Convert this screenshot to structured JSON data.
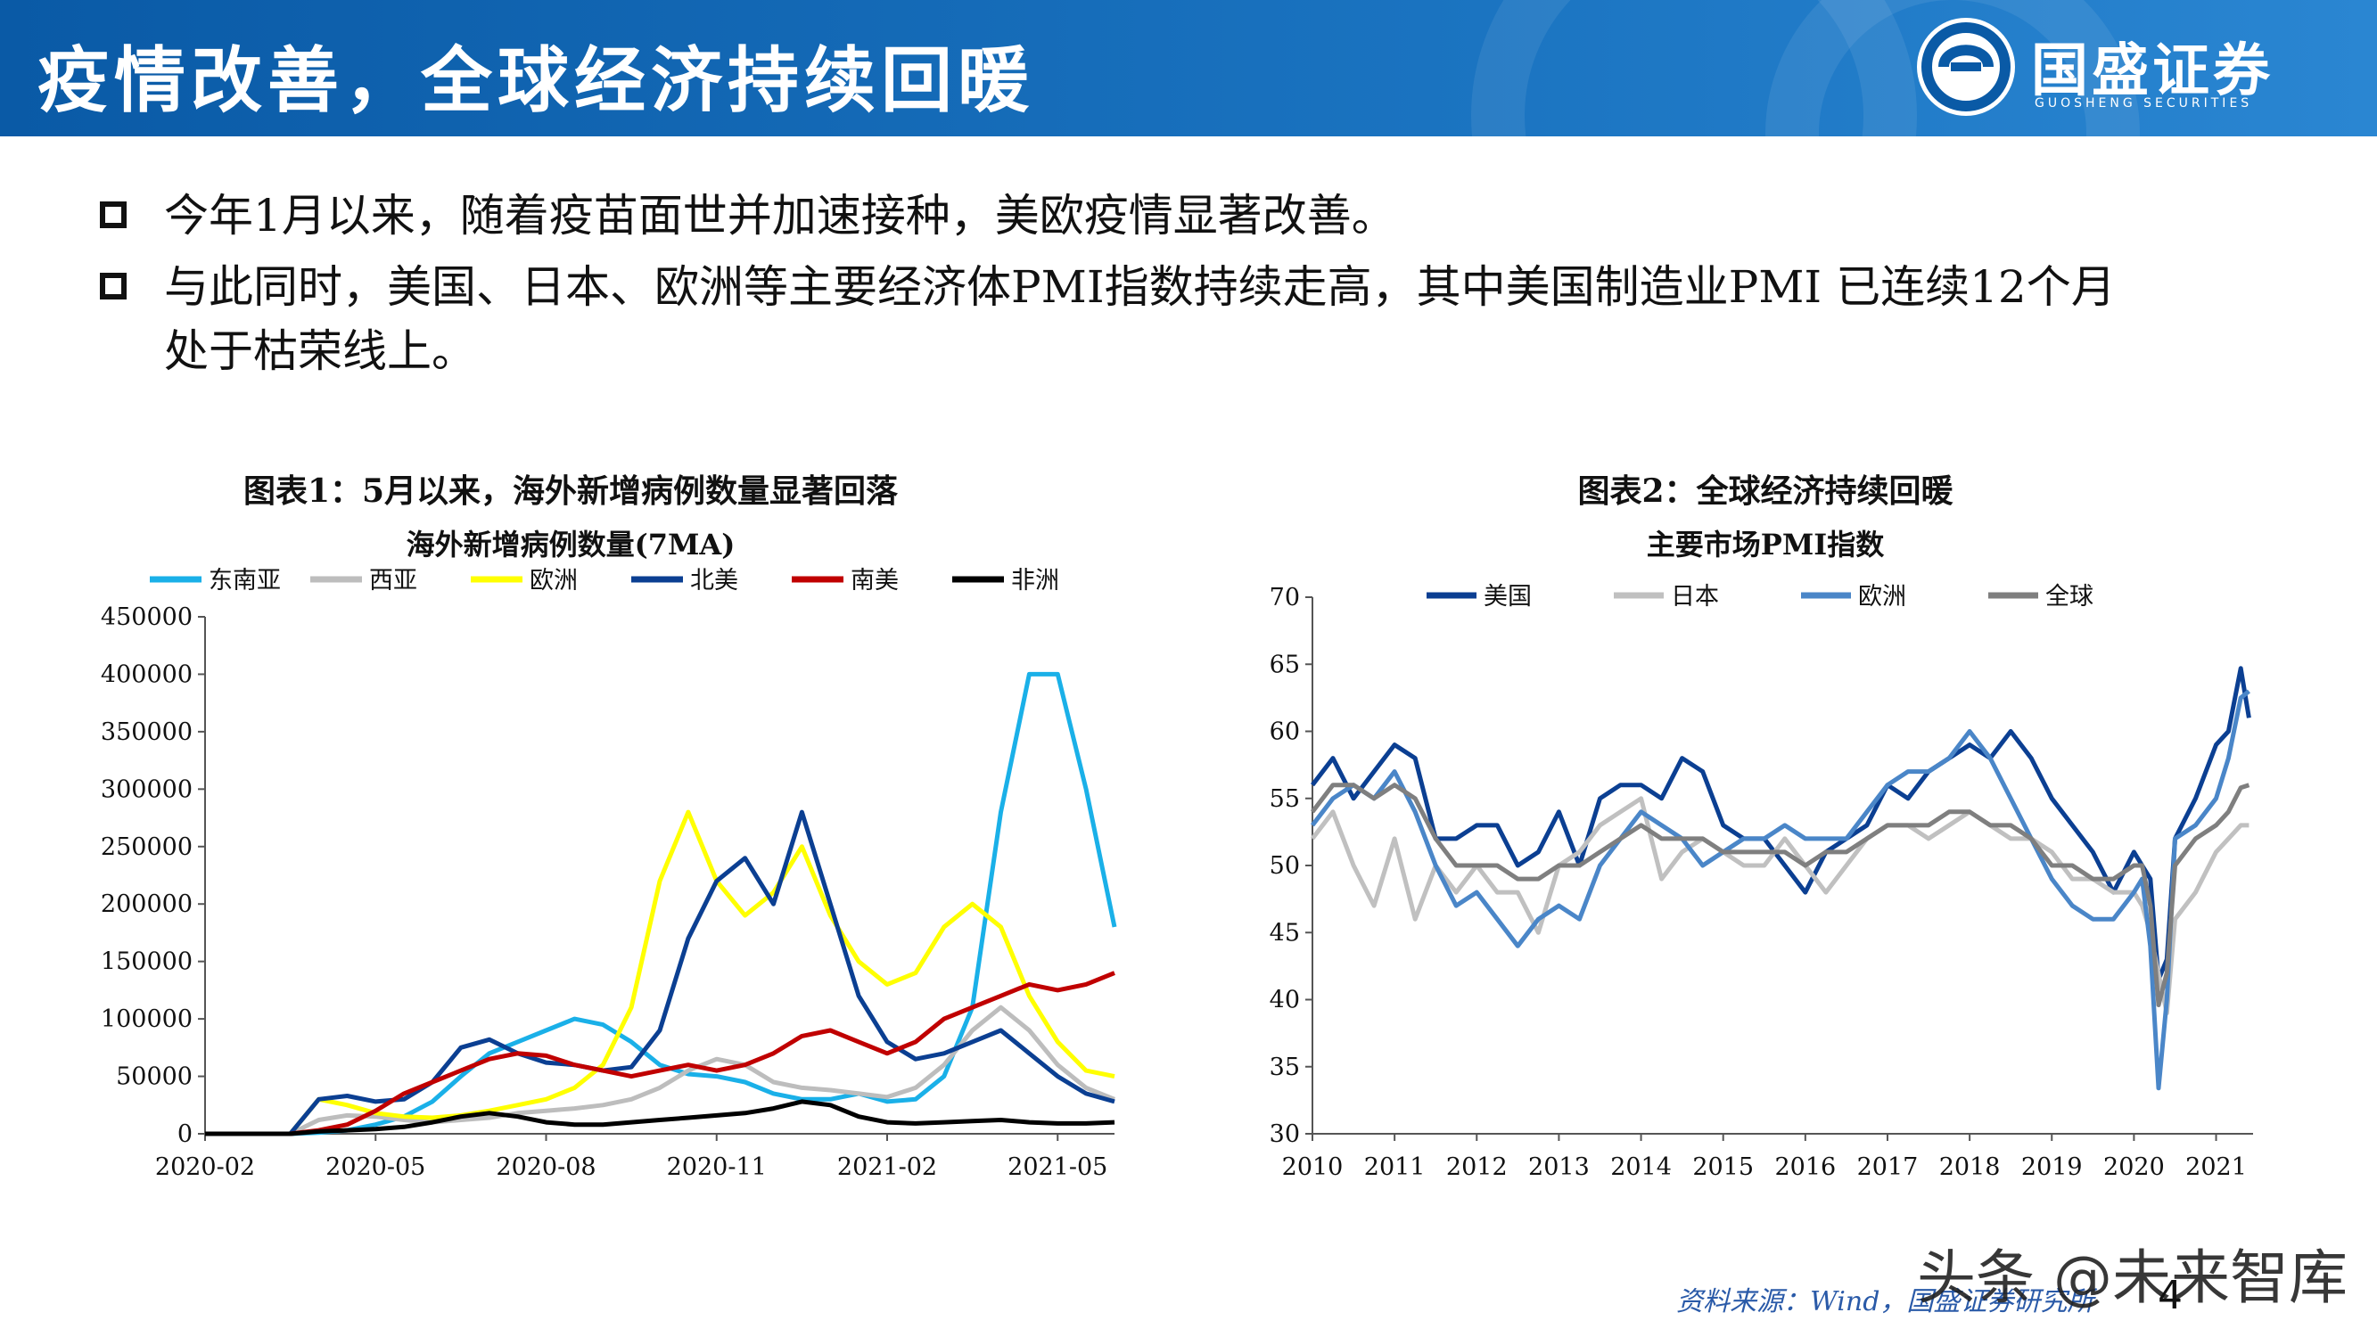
{
  "header": {
    "title": "疫情改善，全球经济持续回暖",
    "logo_name": "国盛证券",
    "logo_en": "GUOSHENG SECURITIES"
  },
  "bullets": [
    {
      "line1": "今年1月以来，随着疫苗面世并加速接种，美欧疫情显著改善。"
    },
    {
      "line1": "与此同时，美国、日本、欧洲等主要经济体PMI指数持续走高，其中美国制造业PMI 已连续12个月",
      "line2": "处于枯荣线上。"
    }
  ],
  "chart_data": [
    {
      "type": "line",
      "title": "图表1：5月以来，海外新增病例数量显著回落",
      "subtitle": "海外新增病例数量(7MA)",
      "xlabel": "",
      "ylabel": "",
      "x_ticks": [
        "2020-02",
        "2020-05",
        "2020-08",
        "2020-11",
        "2021-02",
        "2021-05"
      ],
      "x_range": [
        0,
        16
      ],
      "ylim": [
        0,
        450000
      ],
      "y_ticks": [
        0,
        50000,
        100000,
        150000,
        200000,
        250000,
        300000,
        350000,
        400000,
        450000
      ],
      "legend_position": "top",
      "x": [
        0,
        0.5,
        1,
        1.5,
        2,
        2.5,
        3,
        3.5,
        4,
        4.5,
        5,
        5.5,
        6,
        6.5,
        7,
        7.5,
        8,
        8.5,
        9,
        9.5,
        10,
        10.5,
        11,
        11.5,
        12,
        12.5,
        13,
        13.5,
        14,
        14.5,
        15,
        15.5,
        16
      ],
      "series": [
        {
          "name": "东南亚",
          "color": "#1ab0e8",
          "values": [
            0,
            0,
            0,
            0,
            1000,
            3000,
            8000,
            15000,
            28000,
            50000,
            70000,
            80000,
            90000,
            100000,
            95000,
            80000,
            60000,
            52000,
            50000,
            45000,
            35000,
            30000,
            30000,
            35000,
            28000,
            30000,
            50000,
            110000,
            280000,
            400000,
            400000,
            300000,
            180000
          ]
        },
        {
          "name": "西亚",
          "color": "#bdbdbd",
          "values": [
            0,
            0,
            0,
            0,
            12000,
            16000,
            15000,
            12000,
            10000,
            12000,
            14000,
            18000,
            20000,
            22000,
            25000,
            30000,
            40000,
            55000,
            65000,
            60000,
            45000,
            40000,
            38000,
            35000,
            32000,
            40000,
            60000,
            90000,
            110000,
            90000,
            60000,
            40000,
            30000
          ]
        },
        {
          "name": "欧洲",
          "color": "#ffff00",
          "values": [
            0,
            0,
            0,
            0,
            30000,
            25000,
            18000,
            15000,
            14000,
            16000,
            20000,
            25000,
            30000,
            40000,
            60000,
            110000,
            220000,
            280000,
            220000,
            190000,
            210000,
            250000,
            190000,
            150000,
            130000,
            140000,
            180000,
            200000,
            180000,
            120000,
            80000,
            55000,
            50000
          ]
        },
        {
          "name": "北美",
          "color": "#0b3f92",
          "values": [
            0,
            0,
            0,
            0,
            30000,
            33000,
            28000,
            30000,
            45000,
            75000,
            82000,
            70000,
            62000,
            60000,
            55000,
            58000,
            90000,
            170000,
            220000,
            240000,
            200000,
            280000,
            200000,
            120000,
            80000,
            65000,
            70000,
            80000,
            90000,
            70000,
            50000,
            35000,
            28000
          ]
        },
        {
          "name": "南美",
          "color": "#c00000",
          "values": [
            0,
            0,
            0,
            0,
            3000,
            8000,
            20000,
            35000,
            45000,
            55000,
            65000,
            70000,
            68000,
            60000,
            55000,
            50000,
            55000,
            60000,
            55000,
            60000,
            70000,
            85000,
            90000,
            80000,
            70000,
            80000,
            100000,
            110000,
            120000,
            130000,
            125000,
            130000,
            140000
          ]
        },
        {
          "name": "非洲",
          "color": "#000000",
          "values": [
            0,
            0,
            0,
            0,
            2000,
            3000,
            4000,
            6000,
            10000,
            15000,
            18000,
            15000,
            10000,
            8000,
            8000,
            10000,
            12000,
            14000,
            16000,
            18000,
            22000,
            28000,
            25000,
            15000,
            10000,
            9000,
            10000,
            11000,
            12000,
            10000,
            9000,
            9000,
            10000
          ]
        }
      ]
    },
    {
      "type": "line",
      "title": "图表2：全球经济持续回暖",
      "subtitle": "主要市场PMI指数",
      "xlabel": "",
      "ylabel": "",
      "x_ticks": [
        "2010",
        "2011",
        "2012",
        "2013",
        "2014",
        "2015",
        "2016",
        "2017",
        "2018",
        "2019",
        "2020",
        "2021"
      ],
      "x_range": [
        2010,
        2021.45
      ],
      "ylim": [
        30,
        70
      ],
      "y_ticks": [
        30,
        35,
        40,
        45,
        50,
        55,
        60,
        65,
        70
      ],
      "legend_position": "top",
      "x": [
        2010,
        2010.25,
        2010.5,
        2010.75,
        2011,
        2011.25,
        2011.5,
        2011.75,
        2012,
        2012.25,
        2012.5,
        2012.75,
        2013,
        2013.25,
        2013.5,
        2013.75,
        2014,
        2014.25,
        2014.5,
        2014.75,
        2015,
        2015.25,
        2015.5,
        2015.75,
        2016,
        2016.25,
        2016.5,
        2016.75,
        2017,
        2017.25,
        2017.5,
        2017.75,
        2018,
        2018.25,
        2018.5,
        2018.75,
        2019,
        2019.25,
        2019.5,
        2019.75,
        2020,
        2020.1,
        2020.2,
        2020.3,
        2020.4,
        2020.5,
        2020.75,
        2021,
        2021.15,
        2021.3,
        2021.4
      ],
      "series": [
        {
          "name": "美国",
          "color": "#0b3f92",
          "values": [
            56,
            58,
            55,
            57,
            59,
            58,
            52,
            52,
            53,
            53,
            50,
            51,
            54,
            50,
            55,
            56,
            56,
            55,
            58,
            57,
            53,
            52,
            52,
            50,
            48,
            51,
            52,
            53,
            56,
            55,
            57,
            58,
            59,
            58,
            60,
            58,
            55,
            53,
            51,
            48,
            51,
            50,
            49,
            41.5,
            43,
            52,
            55,
            59,
            60,
            64.7,
            61
          ]
        },
        {
          "name": "日本",
          "color": "#c0c0c0",
          "values": [
            52,
            54,
            50,
            47,
            52,
            46,
            50,
            48,
            50,
            48,
            48,
            45,
            50,
            51,
            53,
            54,
            55,
            49,
            51,
            52,
            51,
            50,
            50,
            52,
            50,
            48,
            50,
            52,
            53,
            53,
            52,
            53,
            54,
            53,
            52,
            52,
            51,
            49,
            49,
            48,
            48,
            47,
            45,
            41.9,
            39,
            46,
            48,
            51,
            52,
            53,
            53
          ]
        },
        {
          "name": "欧洲",
          "color": "#4a86c8",
          "values": [
            53,
            55,
            56,
            55,
            57,
            54,
            50,
            47,
            48,
            46,
            44,
            46,
            47,
            46,
            50,
            52,
            54,
            53,
            52,
            50,
            51,
            52,
            52,
            53,
            52,
            52,
            52,
            54,
            56,
            57,
            57,
            58,
            60,
            58,
            55,
            52,
            49,
            47,
            46,
            46,
            48,
            49,
            44,
            33.4,
            40,
            52,
            53,
            55,
            58,
            62.5,
            63
          ]
        },
        {
          "name": "全球",
          "color": "#7f7f7f",
          "values": [
            54,
            56,
            56,
            55,
            56,
            55,
            52,
            50,
            50,
            50,
            49,
            49,
            50,
            50,
            51,
            52,
            53,
            52,
            52,
            52,
            51,
            51,
            51,
            51,
            50,
            51,
            51,
            52,
            53,
            53,
            53,
            54,
            54,
            53,
            53,
            52,
            50,
            50,
            49,
            49,
            50,
            50,
            47,
            39.6,
            42,
            50,
            52,
            53,
            54,
            55.8,
            56
          ]
        }
      ]
    }
  ],
  "footer": {
    "source": "资料来源：Wind，国盛证券研究所",
    "page": "4",
    "watermark": "头条 @未来智库"
  }
}
